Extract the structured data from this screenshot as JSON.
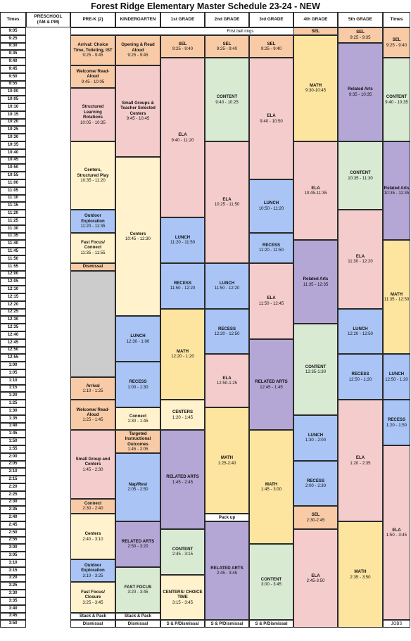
{
  "title": "Forest Ridge Elementary Master Schedule 23-24 - NEW",
  "colors": {
    "orange": "#f8cba6",
    "pink": "#f4cccc",
    "yellow": "#fde5a0",
    "cream": "#fff2cc",
    "blue": "#a9c4f5",
    "purple": "#b4a7d6",
    "green": "#d9ead3",
    "gray": "#cccccc",
    "white": "#ffffff"
  },
  "headers": {
    "times_left": "Times",
    "preschool": [
      "PRESCHOOL",
      "(AM & PM)"
    ],
    "prek": "PRE-K (2)",
    "kindergarten": "KINDERGARTEN",
    "first": "1st GRADE",
    "second": "2nd GRADE",
    "third": "3rd GRADE",
    "fourth": "4th GRADE",
    "fifth": "5th GRADE",
    "times_right": "Times"
  },
  "times": [
    "9:05",
    "9:25",
    "9:30",
    "9:35",
    "9:40",
    "9:45",
    "9:50",
    "9:55",
    "10:00",
    "10:05",
    "10:10",
    "10:15",
    "10:20",
    "10:25",
    "10:30",
    "10:35",
    "10:40",
    "10:45",
    "10:50",
    "10:55",
    "11:00",
    "11:05",
    "11:10",
    "11:15",
    "11:20",
    "11:25",
    "11:30",
    "11:35",
    "11:40",
    "11:45",
    "11:50",
    "11:55",
    "12:00",
    "12:05",
    "12:10",
    "12:15",
    "12:20",
    "12:25",
    "12:30",
    "12:35",
    "12:40",
    "12:45",
    "12:50",
    "12:55",
    "1:00",
    "1:05",
    "1:10",
    "1:15",
    "1:20",
    "1:25",
    "1:30",
    "1:35",
    "1:40",
    "1:45",
    "1:50",
    "1:55",
    "2:00",
    "2:05",
    "2:10",
    "2:15",
    "2:20",
    "2:25",
    "2:30",
    "2:35",
    "2:40",
    "2:45",
    "2:50",
    "2:55",
    "3:00",
    "3:05",
    "3:10",
    "3:15",
    "3:20",
    "3:25",
    "3:30",
    "3:35",
    "3:40",
    "3:45",
    "3:50"
  ],
  "blocks": [
    {
      "col": 1,
      "cols": 8,
      "r0": 0,
      "r1": 1,
      "color": "white",
      "bold": false,
      "lines": [
        "First bell rings"
      ]
    },
    {
      "col": 1,
      "r0": 1,
      "r1": 5,
      "color": "orange",
      "bold": true,
      "lines": [
        "Arrival: Choice",
        "Time, Toileting, IST"
      ],
      "sub": [
        "9:25 - 9:45"
      ]
    },
    {
      "col": 1,
      "r0": 5,
      "r1": 8,
      "color": "orange",
      "bold": true,
      "lines": [
        "Welcome/ Read-",
        "Aloud"
      ],
      "sub": [
        "9:45 - 10:05"
      ]
    },
    {
      "col": 1,
      "r0": 8,
      "r1": 15,
      "color": "pink",
      "bold": true,
      "lines": [
        "Structured",
        "Learning",
        "Rotations"
      ],
      "sub": [
        "10:05 - 10:35"
      ]
    },
    {
      "col": 1,
      "r0": 15,
      "r1": 24,
      "color": "cream",
      "bold": true,
      "lines": [
        "Centers,",
        "Structured Play"
      ],
      "sub": [
        "10:35 - 11:20"
      ]
    },
    {
      "col": 1,
      "r0": 24,
      "r1": 27,
      "color": "blue",
      "bold": true,
      "lines": [
        "Outdoor",
        "Exploration"
      ],
      "sub": [
        "11:20 - 11:35"
      ]
    },
    {
      "col": 1,
      "r0": 27,
      "r1": 31,
      "color": "cream",
      "bold": true,
      "lines": [
        "Fast Focus/",
        "Connect"
      ],
      "sub": [
        "11:35 - 11:55"
      ]
    },
    {
      "col": 1,
      "r0": 31,
      "r1": 32,
      "color": "orange",
      "bold": true,
      "lines": [
        "Dismissal"
      ]
    },
    {
      "col": 1,
      "r0": 32,
      "r1": 46,
      "color": "gray",
      "bold": false,
      "lines": []
    },
    {
      "col": 1,
      "r0": 46,
      "r1": 49,
      "color": "orange",
      "bold": true,
      "lines": [
        "Arrival"
      ],
      "sub": [
        "1:10 - 1:25"
      ]
    },
    {
      "col": 1,
      "r0": 49,
      "r1": 53,
      "color": "orange",
      "bold": true,
      "lines": [
        "Welcome/ Read-",
        "Aloud"
      ],
      "sub": [
        "1:25 - 1:45"
      ]
    },
    {
      "col": 1,
      "r0": 53,
      "r1": 62,
      "color": "pink",
      "bold": true,
      "lines": [
        "Small Group and",
        "Centers"
      ],
      "sub": [
        "1:45 - 2:30"
      ]
    },
    {
      "col": 1,
      "r0": 62,
      "r1": 64,
      "color": "orange",
      "bold": true,
      "lines": [
        "Connect"
      ],
      "sub": [
        "2:30 - 2:40"
      ]
    },
    {
      "col": 1,
      "r0": 64,
      "r1": 70,
      "color": "cream",
      "bold": true,
      "lines": [
        "Centers"
      ],
      "sub": [
        "2:40 - 3:10"
      ]
    },
    {
      "col": 1,
      "r0": 70,
      "r1": 73,
      "color": "blue",
      "bold": true,
      "lines": [
        "Outdoor",
        "Exploration"
      ],
      "sub": [
        "3:10 - 3:25"
      ]
    },
    {
      "col": 1,
      "r0": 73,
      "r1": 77,
      "color": "cream",
      "bold": true,
      "lines": [
        "Fast Focus/",
        "Closure"
      ],
      "sub": [
        "3:25 - 3:45"
      ]
    },
    {
      "col": 1,
      "r0": 77,
      "r1": 78,
      "color": "white",
      "bold": true,
      "lines": [
        "Stack & Pack"
      ]
    },
    {
      "col": 1,
      "r0": 78,
      "r1": 79,
      "color": "white",
      "bold": true,
      "lines": [
        "Dismissal"
      ]
    },
    {
      "col": 2,
      "r0": 1,
      "r1": 5,
      "color": "orange",
      "bold": true,
      "lines": [
        "Opening & Read",
        "Aloud"
      ],
      "sub": [
        "9:25 - 9:45"
      ]
    },
    {
      "col": 2,
      "r0": 5,
      "r1": 17,
      "color": "pink",
      "bold": true,
      "lines": [
        "Small Groups &",
        "Teacher Selected",
        "Centers"
      ],
      "sub": [
        "9:45 - 10:45"
      ]
    },
    {
      "col": 2,
      "r0": 17,
      "r1": 38,
      "color": "cream",
      "bold": true,
      "lines": [
        "Centers"
      ],
      "sub": [
        "10:45 - 12:30"
      ]
    },
    {
      "col": 2,
      "r0": 38,
      "r1": 44,
      "color": "blue",
      "bold": true,
      "lines": [
        "LUNCH"
      ],
      "sub": [
        "12:30 - 1:00"
      ]
    },
    {
      "col": 2,
      "r0": 44,
      "r1": 50,
      "color": "blue",
      "bold": true,
      "lines": [
        "RECESS"
      ],
      "sub": [
        "1:00 - 1:30"
      ]
    },
    {
      "col": 2,
      "r0": 50,
      "r1": 53,
      "color": "cream",
      "bold": true,
      "lines": [
        "Connect"
      ],
      "sub": [
        "1:30 - 1:45"
      ]
    },
    {
      "col": 2,
      "r0": 53,
      "r1": 56,
      "color": "orange",
      "bold": true,
      "lines": [
        "Targeted",
        "Instructional",
        "Outcomes"
      ],
      "sub": [
        "1:45 - 2:05"
      ]
    },
    {
      "col": 2,
      "r0": 56,
      "r1": 65,
      "color": "blue",
      "bold": true,
      "lines": [
        "Nap/Rest"
      ],
      "sub": [
        "2:05 - 2:50"
      ]
    },
    {
      "col": 2,
      "r0": 65,
      "r1": 71,
      "color": "purple",
      "bold": true,
      "lines": [
        "RELATED ARTS"
      ],
      "sub": [
        "2:50 - 3:20"
      ]
    },
    {
      "col": 2,
      "r0": 71,
      "r1": 77,
      "color": "green",
      "bold": true,
      "lines": [
        "FAST FOCUS"
      ],
      "sub": [
        "3:20 - 3:45"
      ]
    },
    {
      "col": 2,
      "r0": 77,
      "r1": 78,
      "color": "white",
      "bold": true,
      "lines": [
        "Stack & Pack"
      ]
    },
    {
      "col": 2,
      "r0": 78,
      "r1": 79,
      "color": "white",
      "bold": true,
      "lines": [
        "Dismissal"
      ]
    },
    {
      "col": 3,
      "r0": 1,
      "r1": 4,
      "color": "orange",
      "bold": true,
      "lines": [
        "SEL"
      ],
      "sub": [
        "9:25 - 9:40"
      ]
    },
    {
      "col": 3,
      "r0": 4,
      "r1": 25,
      "color": "pink",
      "bold": true,
      "lines": [
        "ELA"
      ],
      "sub": [
        "9:40 - 11:20"
      ]
    },
    {
      "col": 3,
      "r0": 25,
      "r1": 31,
      "color": "blue",
      "bold": true,
      "lines": [
        "LUNCH"
      ],
      "sub": [
        "11:20 - 11:50"
      ]
    },
    {
      "col": 3,
      "r0": 31,
      "r1": 37,
      "color": "blue",
      "bold": true,
      "lines": [
        "RECESS"
      ],
      "sub": [
        "11:50 - 12:20"
      ]
    },
    {
      "col": 3,
      "r0": 37,
      "r1": 49,
      "color": "yellow",
      "bold": true,
      "lines": [
        "MATH"
      ],
      "sub": [
        "12:20 - 1:20"
      ]
    },
    {
      "col": 3,
      "r0": 49,
      "r1": 53,
      "color": "cream",
      "bold": true,
      "lines": [
        "CENTERS"
      ],
      "sub": [
        "1:20 - 1:45"
      ]
    },
    {
      "col": 3,
      "r0": 53,
      "r1": 66,
      "color": "purple",
      "bold": true,
      "lines": [
        "RELATED ARTS"
      ],
      "sub": [
        "1:45 - 2:45"
      ]
    },
    {
      "col": 3,
      "r0": 66,
      "r1": 72,
      "color": "green",
      "bold": true,
      "lines": [
        "CONTENT"
      ],
      "sub": [
        "2:45 - 3:15"
      ]
    },
    {
      "col": 3,
      "r0": 72,
      "r1": 78,
      "color": "cream",
      "bold": true,
      "lines": [
        "CENTERS/ CHOICE",
        "TIME"
      ],
      "sub": [
        "3:15 - 3:45"
      ]
    },
    {
      "col": 3,
      "r0": 78,
      "r1": 79,
      "color": "white",
      "bold": true,
      "lines": [
        "S & P/Dismissal"
      ]
    },
    {
      "col": 4,
      "r0": 1,
      "r1": 4,
      "color": "orange",
      "bold": true,
      "lines": [
        "SEL"
      ],
      "sub": [
        "9:25 - 9:40"
      ]
    },
    {
      "col": 4,
      "r0": 4,
      "r1": 15,
      "color": "green",
      "bold": true,
      "lines": [
        "CONTENT"
      ],
      "sub": [
        "9:40 - 10:25"
      ]
    },
    {
      "col": 4,
      "r0": 15,
      "r1": 31,
      "color": "pink",
      "bold": true,
      "lines": [
        "ELA"
      ],
      "sub": [
        "10:25 - 11:50"
      ]
    },
    {
      "col": 4,
      "r0": 31,
      "r1": 37,
      "color": "blue",
      "bold": true,
      "lines": [
        "LUNCH"
      ],
      "sub": [
        "11:50 - 12:20"
      ]
    },
    {
      "col": 4,
      "r0": 37,
      "r1": 43,
      "color": "blue",
      "bold": true,
      "lines": [
        "RECESS"
      ],
      "sub": [
        "12:20 - 12:50"
      ]
    },
    {
      "col": 4,
      "r0": 43,
      "r1": 50,
      "color": "pink",
      "bold": true,
      "lines": [
        "ELA"
      ],
      "sub": [
        "12:50-1:25"
      ]
    },
    {
      "col": 4,
      "r0": 50,
      "r1": 64,
      "color": "yellow",
      "bold": true,
      "lines": [
        "MATH"
      ],
      "sub": [
        "1:25-2:40"
      ]
    },
    {
      "col": 4,
      "r0": 64,
      "r1": 65,
      "color": "white",
      "bold": true,
      "lines": [
        "Pack up"
      ]
    },
    {
      "col": 4,
      "r0": 65,
      "r1": 78,
      "color": "purple",
      "bold": true,
      "lines": [
        "RELATED ARTS"
      ],
      "sub": [
        "2:45 - 3:45"
      ]
    },
    {
      "col": 4,
      "r0": 78,
      "r1": 79,
      "color": "white",
      "bold": true,
      "lines": [
        "S & P/Dismissal"
      ]
    },
    {
      "col": 5,
      "r0": 1,
      "r1": 4,
      "color": "orange",
      "bold": true,
      "lines": [
        "SEL"
      ],
      "sub": [
        "9:25 - 9:40"
      ]
    },
    {
      "col": 5,
      "r0": 4,
      "r1": 20,
      "color": "pink",
      "bold": true,
      "lines": [
        "ELA"
      ],
      "sub": [
        "9:40 - 10:50"
      ]
    },
    {
      "col": 5,
      "r0": 20,
      "r1": 27,
      "color": "blue",
      "bold": true,
      "lines": [
        "LUNCH"
      ],
      "sub": [
        "10:50 - 11:20"
      ]
    },
    {
      "col": 5,
      "r0": 27,
      "r1": 31,
      "color": "blue",
      "bold": true,
      "lines": [
        "RECESS"
      ],
      "sub": [
        "11:20 - 11:50"
      ]
    },
    {
      "col": 5,
      "r0": 31,
      "r1": 41,
      "color": "pink",
      "bold": true,
      "lines": [
        "ELA"
      ],
      "sub": [
        "11:50 - 12:45"
      ]
    },
    {
      "col": 5,
      "r0": 41,
      "r1": 53,
      "color": "purple",
      "bold": true,
      "lines": [
        "RELATED ARTS"
      ],
      "sub": [
        "12:45 - 1:45"
      ]
    },
    {
      "col": 5,
      "r0": 53,
      "r1": 68,
      "color": "yellow",
      "bold": true,
      "lines": [
        "MATH"
      ],
      "sub": [
        "1:45 - 3:00"
      ]
    },
    {
      "col": 5,
      "r0": 68,
      "r1": 78,
      "color": "green",
      "bold": true,
      "lines": [
        "CONTENT"
      ],
      "sub": [
        "3:00 - 3:45"
      ]
    },
    {
      "col": 5,
      "r0": 78,
      "r1": 79,
      "color": "white",
      "bold": true,
      "lines": [
        "S & P/Dismissal"
      ]
    },
    {
      "col": 6,
      "r0": 0,
      "r1": 1,
      "color": "orange",
      "bold": true,
      "lines": [
        "SEL"
      ]
    },
    {
      "col": 6,
      "r0": 1,
      "r1": 15,
      "color": "yellow",
      "bold": true,
      "lines": [
        "MATH"
      ],
      "sub": [
        "9:30-10:45"
      ]
    },
    {
      "col": 6,
      "r0": 15,
      "r1": 28,
      "color": "pink",
      "bold": true,
      "lines": [
        "ELA"
      ],
      "sub": [
        "10:45-11:35"
      ]
    },
    {
      "col": 6,
      "r0": 28,
      "r1": 39,
      "color": "purple",
      "bold": true,
      "lines": [
        "Related Arts"
      ],
      "sub": [
        "11:35 - 12:35"
      ]
    },
    {
      "col": 6,
      "r0": 39,
      "r1": 51,
      "color": "green",
      "bold": true,
      "lines": [
        "CONTENT"
      ],
      "sub": [
        "12:35-1:30"
      ]
    },
    {
      "col": 6,
      "r0": 51,
      "r1": 57,
      "color": "blue",
      "bold": true,
      "lines": [
        "LUNCH"
      ],
      "sub": [
        "1:30 - 2:00"
      ]
    },
    {
      "col": 6,
      "r0": 57,
      "r1": 63,
      "color": "blue",
      "bold": true,
      "lines": [
        "RECESS"
      ],
      "sub": [
        "2:00 - 2:30"
      ]
    },
    {
      "col": 6,
      "r0": 63,
      "r1": 66,
      "color": "orange",
      "bold": true,
      "lines": [
        "SEL"
      ],
      "sub": [
        "2:30-2:45"
      ]
    },
    {
      "col": 6,
      "r0": 66,
      "r1": 79,
      "color": "pink",
      "bold": true,
      "lines": [
        "ELA"
      ],
      "sub": [
        "2:45-3:50"
      ]
    },
    {
      "col": 7,
      "r0": 0,
      "r1": 2,
      "color": "orange",
      "bold": true,
      "lines": [
        "SEL"
      ],
      "sub": [
        "9:25 - 9:35"
      ]
    },
    {
      "col": 7,
      "r0": 2,
      "r1": 15,
      "color": "purple",
      "bold": true,
      "lines": [
        "Related Arts"
      ],
      "sub": [
        "9:35 - 10:35"
      ]
    },
    {
      "col": 7,
      "r0": 15,
      "r1": 24,
      "color": "green",
      "bold": true,
      "lines": [
        "CONTENT"
      ],
      "sub": [
        "10:35 - 11:30"
      ]
    },
    {
      "col": 7,
      "r0": 24,
      "r1": 37,
      "color": "pink",
      "bold": true,
      "lines": [
        "ELA"
      ],
      "sub": [
        "11:30 - 12:20"
      ]
    },
    {
      "col": 7,
      "r0": 37,
      "r1": 43,
      "color": "blue",
      "bold": true,
      "lines": [
        "LUNCH"
      ],
      "sub": [
        "12:20 - 12:50"
      ]
    },
    {
      "col": 7,
      "r0": 43,
      "r1": 49,
      "color": "blue",
      "bold": true,
      "lines": [
        "RECESS"
      ],
      "sub": [
        "12:50 - 1:20"
      ]
    },
    {
      "col": 7,
      "r0": 49,
      "r1": 65,
      "color": "pink",
      "bold": true,
      "lines": [
        "ELA"
      ],
      "sub": [
        "1:20 - 2:35"
      ]
    },
    {
      "col": 7,
      "r0": 65,
      "r1": 79,
      "color": "yellow",
      "bold": true,
      "lines": [
        "MATH"
      ],
      "sub": [
        "2:35 - 3:50"
      ]
    },
    {
      "col": 8,
      "r0": 0,
      "r1": 4,
      "color": "orange",
      "bold": true,
      "lines": [
        "SEL"
      ],
      "sub": [
        "9:25 - 9:40"
      ]
    },
    {
      "col": 8,
      "r0": 4,
      "r1": 15,
      "color": "green",
      "bold": true,
      "lines": [
        "CONTENT"
      ],
      "sub": [
        "9:40 - 10:35"
      ]
    },
    {
      "col": 8,
      "r0": 15,
      "r1": 28,
      "color": "purple",
      "bold": true,
      "lines": [
        "Related Arts"
      ],
      "sub": [
        "10:35 - 11:35"
      ]
    },
    {
      "col": 8,
      "r0": 28,
      "r1": 43,
      "color": "yellow",
      "bold": true,
      "lines": [
        "MATH"
      ],
      "sub": [
        "11:35 - 12:50"
      ]
    },
    {
      "col": 8,
      "r0": 43,
      "r1": 49,
      "color": "blue",
      "bold": true,
      "lines": [
        "LUNCH"
      ],
      "sub": [
        "12:50 - 1:20"
      ]
    },
    {
      "col": 8,
      "r0": 49,
      "r1": 55,
      "color": "blue",
      "bold": true,
      "lines": [
        "RECESS"
      ],
      "sub": [
        "1:20 - 1:50"
      ]
    },
    {
      "col": 8,
      "r0": 55,
      "r1": 78,
      "color": "pink",
      "bold": true,
      "lines": [
        "ELA"
      ],
      "sub": [
        "1:50 - 3:45"
      ]
    },
    {
      "col": 8,
      "r0": 78,
      "r1": 79,
      "color": "white",
      "bold": false,
      "lines": [
        "JOBS"
      ]
    }
  ]
}
